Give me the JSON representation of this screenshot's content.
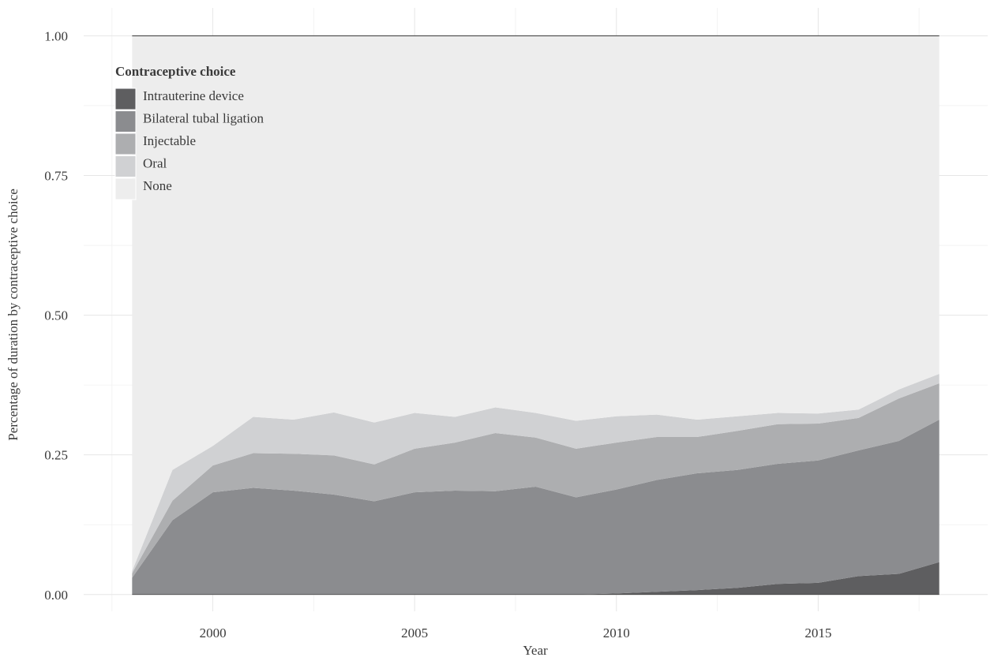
{
  "chart_data": {
    "type": "area",
    "stacked": true,
    "x": [
      1998,
      1999,
      2000,
      2001,
      2002,
      2003,
      2004,
      2005,
      2006,
      2007,
      2008,
      2009,
      2010,
      2011,
      2012,
      2013,
      2014,
      2015,
      2016,
      2017,
      2018
    ],
    "series": [
      {
        "name": "Intrauterine device",
        "color": "#5e5e60",
        "values": [
          0,
          0,
          0,
          0,
          0,
          0,
          0,
          0,
          0,
          0,
          0,
          0,
          0.002,
          0.005,
          0.008,
          0.012,
          0.019,
          0.021,
          0.033,
          0.037,
          0.058
        ]
      },
      {
        "name": "Bilateral tubal ligation",
        "color": "#8b8c8f",
        "values": [
          0.03,
          0.133,
          0.183,
          0.191,
          0.186,
          0.179,
          0.167,
          0.183,
          0.186,
          0.185,
          0.193,
          0.174,
          0.186,
          0.2,
          0.209,
          0.211,
          0.215,
          0.219,
          0.225,
          0.238,
          0.255
        ]
      },
      {
        "name": "Injectable",
        "color": "#adaeb0",
        "values": [
          0.008,
          0.035,
          0.048,
          0.062,
          0.066,
          0.07,
          0.066,
          0.078,
          0.086,
          0.104,
          0.088,
          0.087,
          0.084,
          0.077,
          0.065,
          0.07,
          0.071,
          0.066,
          0.058,
          0.076,
          0.065
        ]
      },
      {
        "name": "Oral",
        "color": "#d0d1d3",
        "values": [
          0.004,
          0.055,
          0.035,
          0.065,
          0.061,
          0.077,
          0.075,
          0.064,
          0.046,
          0.046,
          0.044,
          0.05,
          0.047,
          0.04,
          0.031,
          0.026,
          0.02,
          0.018,
          0.015,
          0.016,
          0.017
        ]
      },
      {
        "name": "None",
        "color": "#ededed",
        "values": [
          0.958,
          0.777,
          0.734,
          0.682,
          0.687,
          0.674,
          0.692,
          0.675,
          0.682,
          0.665,
          0.675,
          0.689,
          0.681,
          0.678,
          0.687,
          0.681,
          0.675,
          0.676,
          0.669,
          0.633,
          0.605
        ]
      }
    ],
    "legend_title": "Contraceptive choice",
    "legend_position": "top-left (inside plot)",
    "xlabel": "Year",
    "ylabel": "Percentage of duration by contraceptive choice",
    "xlim": [
      1996.8,
      2019.2
    ],
    "ylim": [
      -0.03,
      1.05
    ],
    "x_ticks": [
      2000,
      2005,
      2010,
      2015
    ],
    "x_tick_labels": [
      "2000",
      "2005",
      "2010",
      "2015"
    ],
    "y_ticks": [
      0,
      0.25,
      0.5,
      0.75,
      1
    ],
    "y_tick_labels": [
      "0.00",
      "0.25",
      "0.50",
      "0.75",
      "1.00"
    ],
    "grid": true
  }
}
